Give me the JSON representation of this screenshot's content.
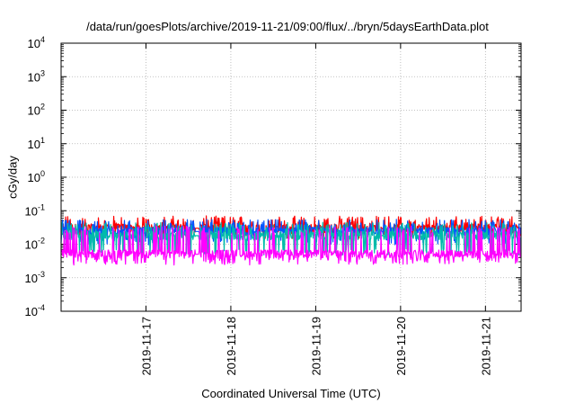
{
  "chart_data": {
    "type": "line",
    "title": "/data/run/goesPlots/archive/2019-11-21/09:00/flux/../bryn/5daysEarthData.plot",
    "xlabel": "Coordinated Universal Time (UTC)",
    "ylabel": "cGy/day",
    "yscale": "log",
    "ylim": [
      0.0001,
      10000
    ],
    "y_ticks": [
      {
        "base": "10",
        "exp": "-4"
      },
      {
        "base": "10",
        "exp": "-3"
      },
      {
        "base": "10",
        "exp": "-2"
      },
      {
        "base": "10",
        "exp": "-1"
      },
      {
        "base": "10",
        "exp": "0"
      },
      {
        "base": "10",
        "exp": "1"
      },
      {
        "base": "10",
        "exp": "2"
      },
      {
        "base": "10",
        "exp": "3"
      },
      {
        "base": "10",
        "exp": "4"
      }
    ],
    "x_range_days": [
      "2019-11-16",
      "2019-11-21"
    ],
    "x_ticks": [
      "2019-11-17",
      "2019-11-18",
      "2019-11-19",
      "2019-11-20",
      "2019-11-21"
    ],
    "grid": true,
    "legend": "none",
    "gaps": [
      [
        "2019-11-17 14:00",
        "2019-11-17 15:00"
      ],
      [
        "2019-11-19 18:30",
        "2019-11-19 19:00"
      ]
    ],
    "series": [
      {
        "color": "#ff0000",
        "base": 0.03,
        "low": 0.018,
        "high": 0.07
      },
      {
        "color": "#0055ff",
        "base": 0.024,
        "low": 0.012,
        "high": 0.055
      },
      {
        "color": "#00bbaa",
        "base": 0.018,
        "low": 0.006,
        "high": 0.045
      },
      {
        "color": "#ff00ff",
        "base": 0.005,
        "low": 0.003,
        "high": 0.035
      }
    ]
  }
}
